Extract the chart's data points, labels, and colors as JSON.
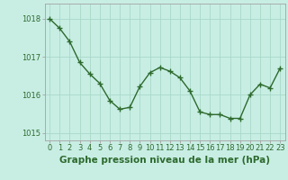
{
  "x": [
    0,
    1,
    2,
    3,
    4,
    5,
    6,
    7,
    8,
    9,
    10,
    11,
    12,
    13,
    14,
    15,
    16,
    17,
    18,
    19,
    20,
    21,
    22,
    23
  ],
  "y": [
    1018.0,
    1017.75,
    1017.4,
    1016.85,
    1016.55,
    1016.3,
    1015.85,
    1015.62,
    1015.67,
    1016.22,
    1016.58,
    1016.72,
    1016.62,
    1016.45,
    1016.1,
    1015.55,
    1015.48,
    1015.48,
    1015.38,
    1015.38,
    1016.0,
    1016.28,
    1016.18,
    1016.7
  ],
  "line_color": "#2d6a2d",
  "marker_color": "#2d6a2d",
  "bg_color": "#c8eee4",
  "grid_color": "#a8d8c8",
  "border_color": "#aaaaaa",
  "axis_label_color": "#2d6a2d",
  "tick_color": "#2d6a2d",
  "xlabel": "Graphe pression niveau de la mer (hPa)",
  "ylim": [
    1014.8,
    1018.4
  ],
  "yticks": [
    1015,
    1016,
    1017,
    1018
  ],
  "xlabel_fontsize": 7.5,
  "tick_fontsize": 6,
  "marker_size": 2.5,
  "line_width": 1.0,
  "fig_width": 3.2,
  "fig_height": 2.0,
  "dpi": 100
}
